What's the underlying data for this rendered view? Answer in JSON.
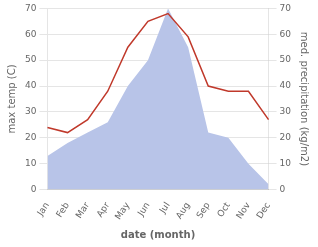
{
  "chart_data": {
    "type": "line",
    "xlabel": "date (month)",
    "ylabel": "max temp (C)",
    "y2label": "med. precipitation (kg/m2)",
    "categories": [
      "Jan",
      "Feb",
      "Mar",
      "Apr",
      "May",
      "Jun",
      "Jul",
      "Aug",
      "Sep",
      "Oct",
      "Nov",
      "Dec"
    ],
    "series": [
      {
        "type": "area",
        "color": "#b8c4e8",
        "axis": "y2",
        "values": [
          13,
          18,
          22,
          26,
          40,
          50,
          70,
          55,
          22,
          20,
          10,
          2
        ]
      },
      {
        "type": "line",
        "color": "#c0392b",
        "values": [
          24,
          22,
          27,
          38,
          55,
          65,
          68,
          59,
          40,
          38,
          38,
          27
        ]
      }
    ],
    "ylim": [
      0,
      70
    ],
    "yticks": [
      0,
      10,
      20,
      30,
      40,
      50,
      60,
      70
    ],
    "y2lim": [
      0,
      70
    ],
    "y2ticks": [
      0,
      10,
      20,
      30,
      40,
      50,
      60,
      70
    ],
    "grid": true
  }
}
